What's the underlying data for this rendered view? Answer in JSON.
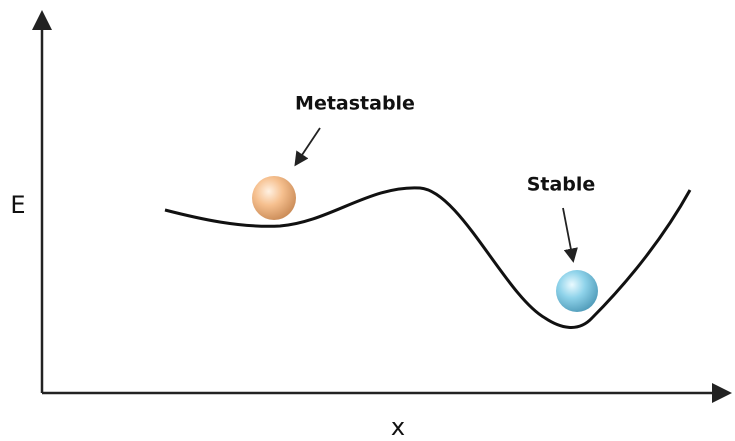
{
  "axes": {
    "y_label": "E",
    "x_label": "x"
  },
  "states": [
    {
      "label": "Metastable"
    },
    {
      "label": "Stable"
    }
  ]
}
